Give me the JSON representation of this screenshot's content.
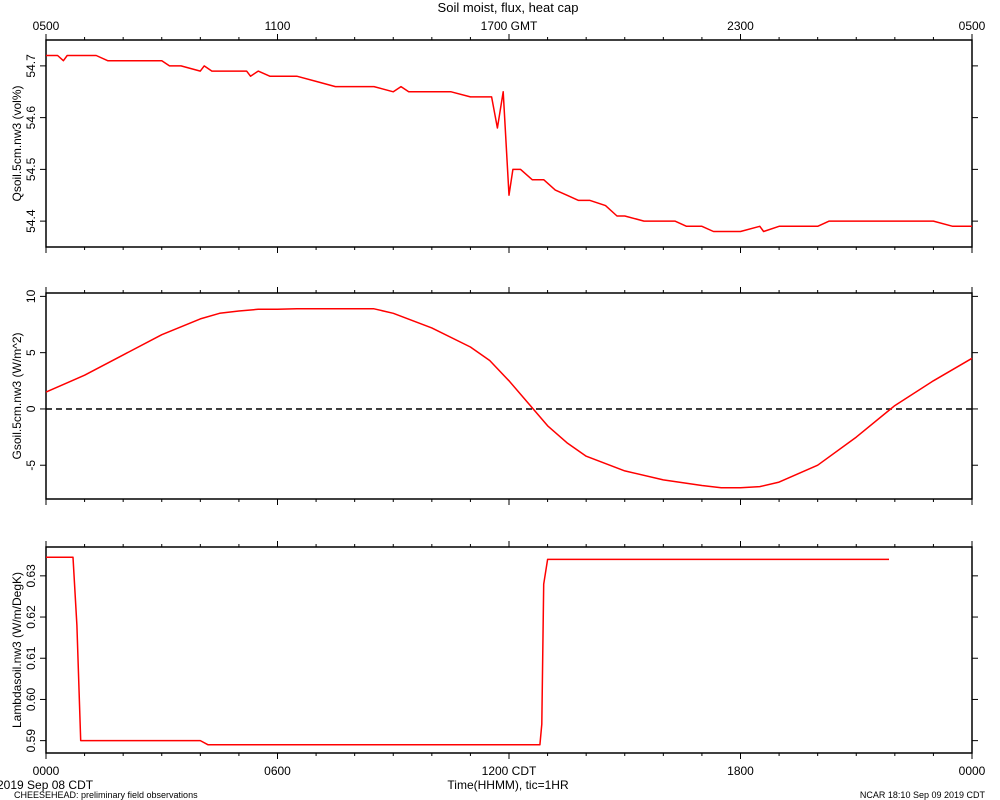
{
  "page": {
    "top_title": "Soil moist, flux, heat cap",
    "bottom_axis_label": "Time(HHMM), tic=1HR",
    "start_date": "2019 Sep 08 CDT",
    "footer_left": "CHEESEHEAD: preliminary field observations",
    "footer_right": "NCAR 18:10 Sep 09 2019 CDT"
  },
  "colors": {
    "series": "#ff0000",
    "axes": "#000000",
    "background": "#ffffff"
  },
  "chart_data": [
    {
      "type": "line",
      "ylabel": "Qsoil.5cm.nw3 (vol%)",
      "ylim": [
        54.35,
        54.75
      ],
      "yticks": [
        54.4,
        54.5,
        54.6,
        54.7
      ],
      "ytick_labels": [
        "54.4",
        "54.5",
        "54.6",
        "54.7"
      ],
      "xlim": [
        0,
        24
      ],
      "x_top_ticks": [
        0,
        6,
        12,
        18,
        24
      ],
      "x_top_tick_labels": [
        "0500",
        "1100",
        "1700 GMT",
        "2300",
        "0500"
      ],
      "zero_line": false,
      "series": [
        {
          "x": [
            0,
            0.3,
            0.45,
            0.55,
            0.7,
            1.3,
            1.6,
            1.9,
            2.3,
            3.0,
            3.2,
            3.5,
            4.0,
            4.1,
            4.3,
            4.6,
            5.2,
            5.3,
            5.5,
            5.8,
            6.5,
            7.0,
            7.5,
            8.0,
            8.5,
            9.0,
            9.2,
            9.4,
            9.6,
            10.0,
            10.5,
            11.0,
            11.3,
            11.55,
            11.7,
            11.85,
            12.0,
            12.1,
            12.3,
            12.6,
            12.9,
            13.2,
            13.5,
            13.8,
            14.1,
            14.5,
            14.8,
            15.0,
            15.5,
            16.0,
            16.3,
            16.6,
            17.0,
            17.3,
            17.6,
            18.0,
            18.5,
            18.6,
            19.0,
            19.5,
            20.0,
            20.3,
            21.0,
            22.0,
            23.0,
            23.5,
            24.0
          ],
          "y": [
            54.72,
            54.72,
            54.71,
            54.72,
            54.72,
            54.72,
            54.71,
            54.71,
            54.71,
            54.71,
            54.7,
            54.7,
            54.69,
            54.7,
            54.69,
            54.69,
            54.69,
            54.68,
            54.69,
            54.68,
            54.68,
            54.67,
            54.66,
            54.66,
            54.66,
            54.65,
            54.66,
            54.65,
            54.65,
            54.65,
            54.65,
            54.64,
            54.64,
            54.64,
            54.58,
            54.65,
            54.45,
            54.5,
            54.5,
            54.48,
            54.48,
            54.46,
            54.45,
            54.44,
            54.44,
            54.43,
            54.41,
            54.41,
            54.4,
            54.4,
            54.4,
            54.39,
            54.39,
            54.38,
            54.38,
            54.38,
            54.39,
            54.38,
            54.39,
            54.39,
            54.39,
            54.4,
            54.4,
            54.4,
            54.4,
            54.39,
            54.39
          ]
        }
      ]
    },
    {
      "type": "line",
      "ylabel": "Gsoil.5cm.nw3 (W/m^2)",
      "ylim": [
        -8,
        10.3
      ],
      "yticks": [
        -5,
        0,
        5,
        10
      ],
      "ytick_labels": [
        "-5",
        "0",
        "5",
        "10"
      ],
      "xlim": [
        0,
        24
      ],
      "zero_line": true,
      "series": [
        {
          "x": [
            0,
            1,
            2,
            3,
            4,
            4.5,
            5,
            5.5,
            6,
            6.5,
            7,
            8,
            8.5,
            9,
            10,
            11,
            11.5,
            12,
            12.5,
            13,
            13.5,
            14,
            15,
            16,
            17,
            17.5,
            18,
            18.5,
            19,
            20,
            21,
            22,
            23,
            24
          ],
          "y": [
            1.5,
            3.0,
            4.8,
            6.6,
            8.0,
            8.5,
            8.7,
            8.85,
            8.85,
            8.9,
            8.9,
            8.9,
            8.9,
            8.5,
            7.2,
            5.5,
            4.3,
            2.5,
            0.5,
            -1.5,
            -3.0,
            -4.2,
            -5.5,
            -6.3,
            -6.8,
            -7.0,
            -7.0,
            -6.9,
            -6.5,
            -5.0,
            -2.5,
            0.3,
            2.5,
            4.5
          ]
        }
      ]
    },
    {
      "type": "line",
      "ylabel": "Lambdasoil.nw3 (W/m/DegK)",
      "ylim": [
        0.587,
        0.637
      ],
      "yticks": [
        0.59,
        0.6,
        0.61,
        0.62,
        0.63
      ],
      "ytick_labels": [
        "0.59",
        "0.60",
        "0.61",
        "0.62",
        "0.63"
      ],
      "xlim": [
        0,
        24
      ],
      "x_bottom_ticks": [
        0,
        6,
        12,
        18,
        24
      ],
      "x_bottom_tick_labels": [
        "0000",
        "0600",
        "1200 CDT",
        "1800",
        "0000"
      ],
      "zero_line": false,
      "series": [
        {
          "x": [
            0,
            0.7,
            0.8,
            0.9,
            4.0,
            4.2,
            12.8,
            12.85,
            12.9,
            13.0,
            21.85
          ],
          "y": [
            0.6345,
            0.6345,
            0.618,
            0.59,
            0.59,
            0.589,
            0.589,
            0.594,
            0.628,
            0.634,
            0.634
          ]
        }
      ]
    }
  ]
}
